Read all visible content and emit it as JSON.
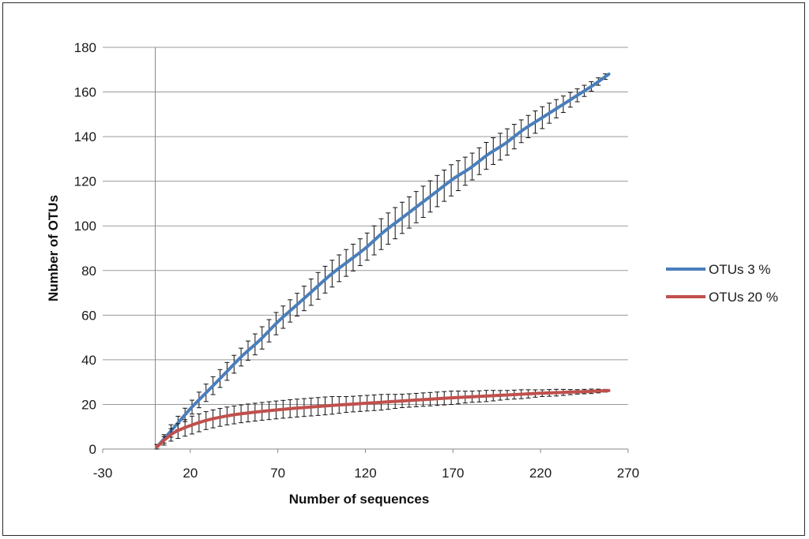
{
  "chart_data": {
    "type": "line",
    "title": "",
    "xlabel": "Number of sequences",
    "ylabel": "Number of OTUs",
    "xlim": [
      -30,
      270
    ],
    "ylim": [
      0,
      180
    ],
    "x_ticks": [
      -30,
      20,
      70,
      120,
      170,
      220,
      270
    ],
    "y_ticks": [
      0,
      20,
      40,
      60,
      80,
      100,
      120,
      140,
      160,
      180
    ],
    "grid": "horizontal",
    "legend_position": "right",
    "series": [
      {
        "name": "OTUs 3 %",
        "color": "#4a7ebb",
        "x": [
          1,
          10,
          20,
          30,
          40,
          50,
          60,
          70,
          80,
          90,
          100,
          110,
          120,
          130,
          140,
          150,
          160,
          170,
          180,
          190,
          200,
          210,
          220,
          230,
          240,
          250,
          259
        ],
        "y": [
          1,
          9,
          18,
          26,
          34,
          42,
          49,
          57,
          64,
          71,
          78,
          84,
          90,
          97,
          103,
          109,
          115,
          121,
          126,
          132,
          137,
          143,
          148,
          153,
          158,
          163,
          168
        ],
        "error": [
          1,
          3,
          3,
          4,
          4,
          4,
          5,
          5,
          5,
          6,
          6,
          6,
          6,
          7,
          7,
          7,
          7,
          7,
          6,
          6,
          6,
          5,
          5,
          4,
          3,
          2,
          1
        ]
      },
      {
        "name": "OTUs 20 %",
        "color": "#c0504d",
        "x": [
          1,
          10,
          20,
          30,
          40,
          50,
          60,
          70,
          80,
          90,
          100,
          110,
          120,
          130,
          140,
          150,
          160,
          170,
          180,
          190,
          200,
          210,
          220,
          230,
          240,
          250,
          259
        ],
        "y": [
          1,
          7,
          10.5,
          13,
          14.7,
          15.9,
          16.8,
          17.6,
          18.3,
          18.9,
          19.5,
          20.0,
          20.5,
          21.0,
          21.5,
          22.0,
          22.5,
          23.0,
          23.4,
          23.8,
          24.2,
          24.6,
          25.0,
          25.3,
          25.6,
          25.9,
          26.2
        ],
        "error": [
          1,
          3,
          4,
          4,
          4,
          4,
          4,
          4,
          4,
          4,
          4,
          3.5,
          3.5,
          3.5,
          3,
          3,
          3,
          3,
          2.5,
          2.5,
          2,
          2,
          1.5,
          1.5,
          1,
          1,
          0.5
        ]
      }
    ]
  }
}
